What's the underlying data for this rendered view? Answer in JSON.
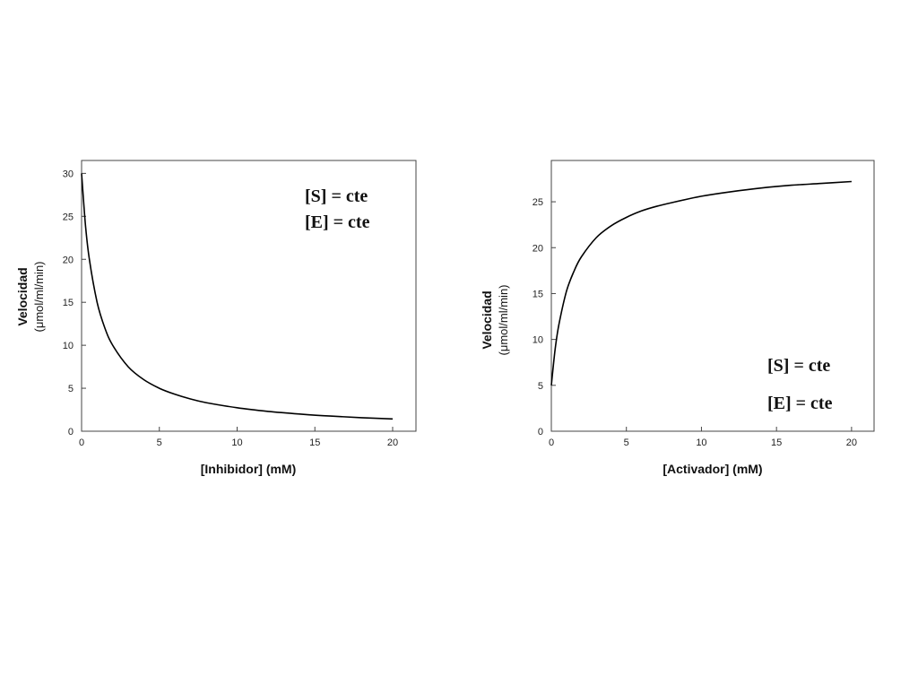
{
  "chart_data": [
    {
      "type": "line",
      "xlabel": "[Inhibidor] (mM)",
      "ylabel": "Velocidad",
      "ylabel_unit": "(μmol/ml/min)",
      "xlim": [
        0,
        21.5
      ],
      "ylim": [
        0,
        31.5
      ],
      "xticks": [
        0,
        5,
        10,
        15,
        20
      ],
      "yticks": [
        0,
        5,
        10,
        15,
        20,
        25,
        30
      ],
      "grid": false,
      "annotations": [
        "[S] = cte",
        "[E] = cte"
      ],
      "annotation_position": "top-right",
      "series": [
        {
          "x": [
            0,
            0.25,
            0.5,
            1,
            1.5,
            2,
            3,
            4,
            5,
            6,
            7,
            8,
            10,
            12,
            14,
            16,
            18,
            20
          ],
          "y": [
            30,
            24,
            20,
            15,
            12,
            10,
            7.5,
            6,
            5,
            4.3,
            3.75,
            3.33,
            2.73,
            2.31,
            2,
            1.76,
            1.58,
            1.43
          ]
        }
      ]
    },
    {
      "type": "line",
      "xlabel": "[Activador] (mM)",
      "ylabel": "Velocidad",
      "ylabel_unit": "(μmol/ml/min)",
      "xlim": [
        0,
        21.5
      ],
      "ylim": [
        0,
        29.5
      ],
      "xticks": [
        0,
        5,
        10,
        15,
        20
      ],
      "yticks": [
        0,
        5,
        10,
        15,
        20,
        25
      ],
      "grid": false,
      "annotations": [
        "[S] = cte",
        "[E] = cte"
      ],
      "annotation_position": "bottom-right",
      "series": [
        {
          "x": [
            0,
            0.25,
            0.5,
            1,
            1.5,
            2,
            3,
            4,
            5,
            6,
            7,
            8,
            10,
            12,
            14,
            16,
            18,
            20
          ],
          "y": [
            5,
            8.9,
            11.6,
            15.2,
            17.4,
            19.0,
            21.1,
            22.4,
            23.3,
            24.0,
            24.5,
            24.9,
            25.6,
            26.1,
            26.5,
            26.8,
            27.0,
            27.2
          ]
        }
      ]
    }
  ]
}
